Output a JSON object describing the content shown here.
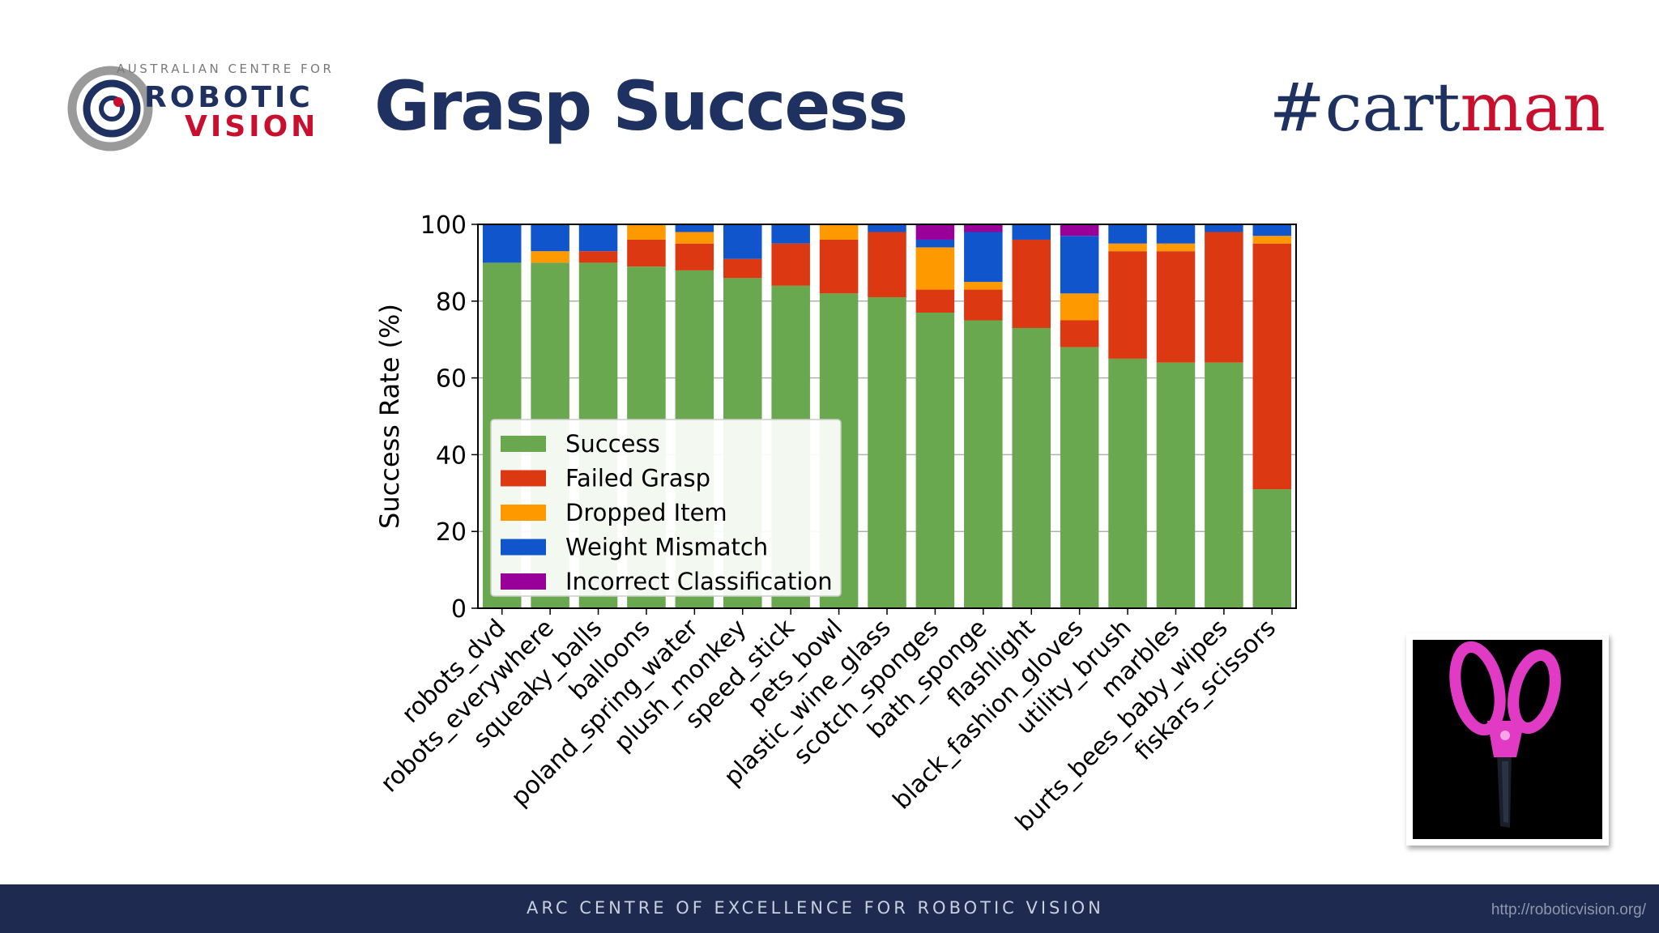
{
  "logo": {
    "top_line": "AUSTRALIAN CENTRE FOR",
    "word1": "ROBOTIC",
    "word2": "VISION"
  },
  "title": "Grasp Success",
  "hashtag": {
    "part1": "#cart",
    "part2": "man"
  },
  "footer": {
    "text": "ARC  CENTRE OF EXCELLENCE FOR ROBOTIC VISION",
    "url": "http://roboticvision.org/"
  },
  "colors": {
    "navy": "#1f3160",
    "red": "#c8102e",
    "success": "#6aa84f",
    "failed": "#dc3912",
    "dropped": "#ff9900",
    "weight": "#1155cc",
    "incorrect": "#990099"
  },
  "chart_data": {
    "type": "bar",
    "stacked": true,
    "ylabel": "Success Rate (%)",
    "ylim": [
      0,
      100
    ],
    "yticks": [
      "0",
      "20",
      "40",
      "60",
      "80",
      "100"
    ],
    "grid": "horizontal",
    "legend_position": "bottom-left",
    "categories": [
      "robots_dvd",
      "robots_everywhere",
      "squeaky_balls",
      "balloons",
      "poland_spring_water",
      "plush_monkey",
      "speed_stick",
      "pets_bowl",
      "plastic_wine_glass",
      "scotch_sponges",
      "bath_sponge",
      "flashlight",
      "black_fashion_gloves",
      "utility_brush",
      "marbles",
      "burts_bees_baby_wipes",
      "fiskars_scissors"
    ],
    "series": [
      {
        "name": "Success",
        "color": "#6aa84f",
        "values": [
          90,
          90,
          90,
          89,
          88,
          86,
          84,
          82,
          81,
          77,
          75,
          73,
          68,
          65,
          64,
          64,
          31
        ]
      },
      {
        "name": "Failed Grasp",
        "color": "#dc3912",
        "values": [
          0,
          0,
          3,
          7,
          7,
          5,
          11,
          14,
          17,
          6,
          8,
          23,
          7,
          28,
          29,
          34,
          64
        ]
      },
      {
        "name": "Dropped Item",
        "color": "#ff9900",
        "values": [
          0,
          3,
          0,
          4,
          3,
          0,
          0,
          4,
          0,
          11,
          2,
          0,
          7,
          2,
          2,
          0,
          2
        ]
      },
      {
        "name": "Weight Mismatch",
        "color": "#1155cc",
        "values": [
          10,
          7,
          7,
          0,
          2,
          9,
          5,
          0,
          2,
          2,
          13,
          4,
          15,
          5,
          5,
          2,
          3
        ]
      },
      {
        "name": "Incorrect Classification",
        "color": "#990099",
        "values": [
          0,
          0,
          0,
          0,
          0,
          0,
          0,
          0,
          0,
          4,
          2,
          0,
          3,
          0,
          0,
          0,
          0
        ]
      }
    ]
  }
}
